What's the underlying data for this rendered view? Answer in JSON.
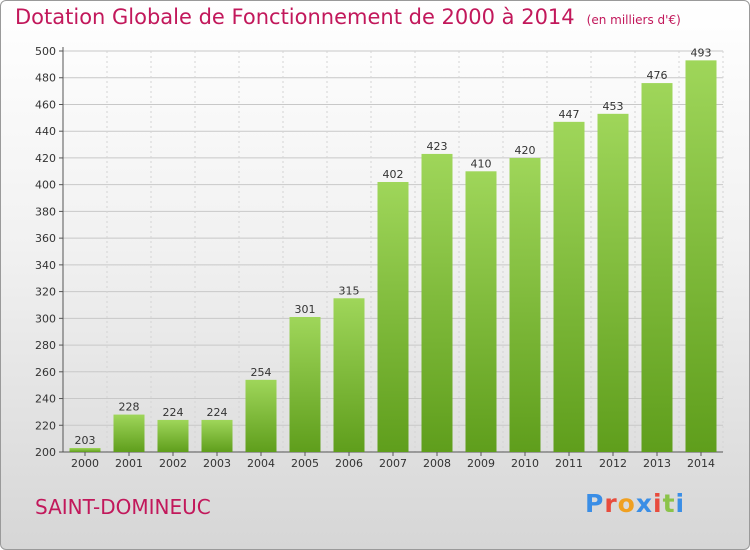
{
  "title": "Dotation Globale de Fonctionnement de 2000 à 2014",
  "unit_note": "(en milliers d'€)",
  "commune": "SAINT-DOMINEUC",
  "logo": {
    "text": "Proxiti",
    "letter_colors": [
      "#3a8ee6",
      "#e84c3d",
      "#f0a020",
      "#3a8ee6",
      "#e84c3d",
      "#8bc34a",
      "#3a8ee6"
    ]
  },
  "colors": {
    "title": "#c2185b",
    "bar_light": "#9fd65a",
    "bar_dark": "#5f9e1c",
    "grid": "#c8c8c8"
  },
  "chart_data": {
    "type": "bar",
    "title": "Dotation Globale de Fonctionnement de 2000 à 2014",
    "subtitle": "(en milliers d'€)",
    "xlabel": "",
    "ylabel": "",
    "categories": [
      "2000",
      "2001",
      "2002",
      "2003",
      "2004",
      "2005",
      "2006",
      "2007",
      "2008",
      "2009",
      "2010",
      "2011",
      "2012",
      "2013",
      "2014"
    ],
    "values": [
      203,
      228,
      224,
      224,
      254,
      301,
      315,
      402,
      423,
      410,
      420,
      447,
      453,
      476,
      493
    ],
    "ylim": [
      200,
      500
    ],
    "yticks": [
      200,
      220,
      240,
      260,
      280,
      300,
      320,
      340,
      360,
      380,
      400,
      420,
      440,
      460,
      480,
      500
    ],
    "grid": true,
    "legend": "none"
  }
}
